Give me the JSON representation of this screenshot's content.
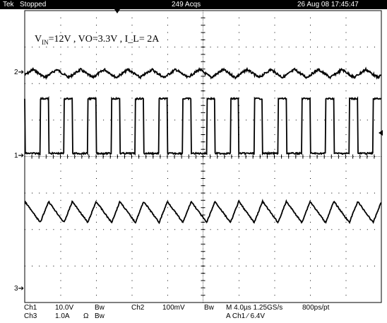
{
  "header": {
    "brand": "Tek",
    "state": "Stopped",
    "acqs": "249 Acqs",
    "datetime": "26 Aug 08 17:45:47"
  },
  "annotation": "Vᴵₙ =12V , VO=3.3V ,    I_L= 2A",
  "annotation_parts": {
    "v": "V",
    "sub": "IN",
    "rest": "=12V , VO=3.3V ,    I_L= 2A"
  },
  "markers": {
    "ch2": "2",
    "ch1": "1",
    "ch3": "3"
  },
  "settings": {
    "ch1_label": "Ch1",
    "ch1_scale": "10.0V",
    "ch1_bw": "Bw",
    "ch2_label": "Ch2",
    "ch2_scale": "100mV",
    "ch2_bw": "Bw",
    "ch3_label": "Ch3",
    "ch3_scale": "1.0A",
    "ch3_ohm": "Ω",
    "ch3_bw": "Bw",
    "timebase": "M 4.0µs 1.25GS/s",
    "resolution": "800ps/pt",
    "trigger": "A  Ch1  ∕  6.4V"
  },
  "colors": {
    "background": "#ffffff",
    "trace": "#000000",
    "grid": "#000000"
  },
  "chart_data": {
    "type": "line",
    "x_unit": "divisions",
    "x_range": [
      0,
      10
    ],
    "series": [
      {
        "channel": "Ch2",
        "waveform": "triangle-ripple",
        "cycles": 15,
        "amplitude_div": 0.22
      },
      {
        "channel": "Ch1",
        "waveform": "pulse",
        "cycles": 15,
        "high_div": 1.5,
        "duty": 0.35
      },
      {
        "channel": "Ch3",
        "waveform": "triangle",
        "cycles": 15,
        "amplitude_div": 0.58
      }
    ],
    "grid": true
  }
}
